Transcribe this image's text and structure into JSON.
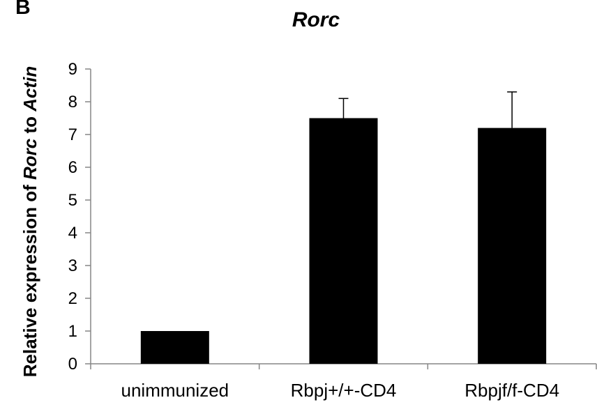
{
  "panel_label": "B",
  "chart_data": {
    "type": "bar",
    "title": "Rorc",
    "ylabel": {
      "prefix": "Relative expression of ",
      "gene": "Rorc",
      "middle": " to ",
      "reference": "Actin"
    },
    "xlabel": "",
    "categories": [
      "unimmunized",
      "Rbpj+/+-CD4",
      "Rbpjf/f-CD4"
    ],
    "values": [
      1.0,
      7.5,
      7.2
    ],
    "error_upper": [
      0.0,
      0.6,
      1.1
    ],
    "ylim": [
      0,
      9
    ],
    "yticks": [
      0,
      1,
      2,
      3,
      4,
      5,
      6,
      7,
      8,
      9
    ],
    "bar_color": "#000000",
    "grid": false,
    "legend": "none"
  }
}
